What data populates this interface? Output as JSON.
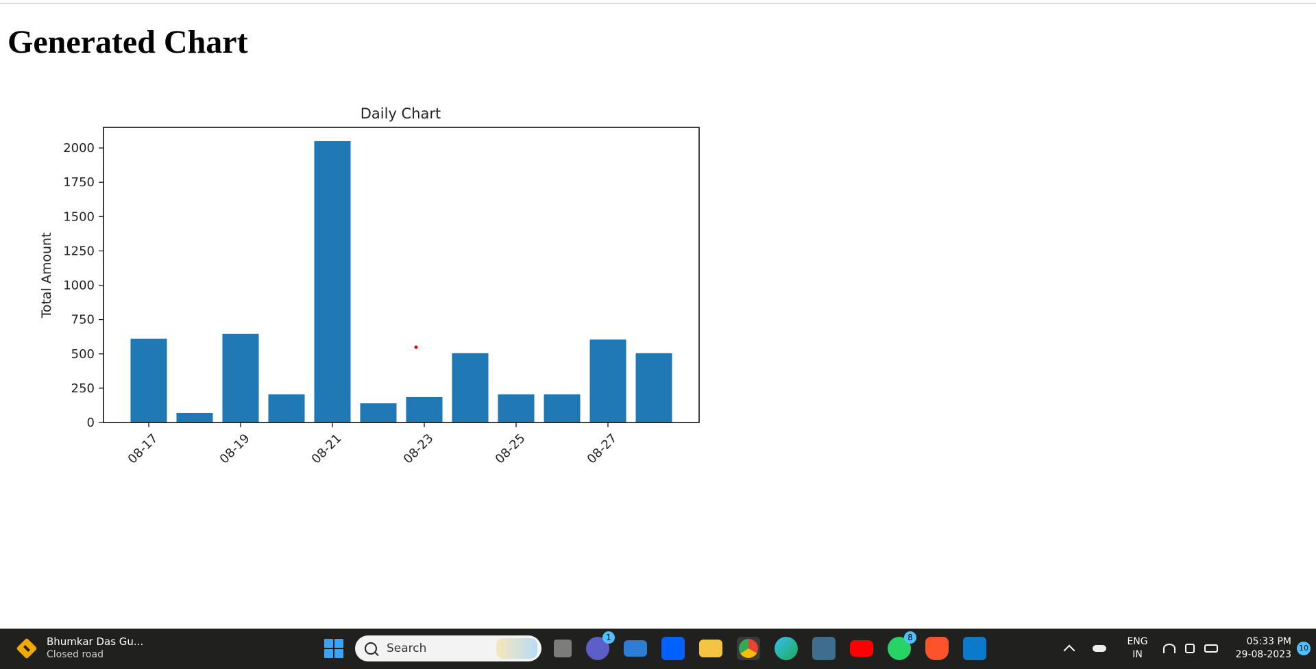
{
  "page": {
    "heading": "Generated Chart"
  },
  "chart_data": {
    "type": "bar",
    "title": "Daily Chart",
    "xlabel": "",
    "ylabel": "Total Amount",
    "color": "#1f77b4",
    "ylim": [
      0,
      2150
    ],
    "yticks": [
      0,
      250,
      500,
      750,
      1000,
      1250,
      1500,
      1750,
      2000
    ],
    "xtick_labels": [
      "08-17",
      "08-19",
      "08-21",
      "08-23",
      "08-25",
      "08-27"
    ],
    "categories": [
      "08-17",
      "08-18",
      "08-19",
      "08-20",
      "08-21",
      "08-22",
      "08-23",
      "08-24",
      "08-25",
      "08-26",
      "08-27",
      "08-28"
    ],
    "values": [
      610,
      70,
      645,
      205,
      2050,
      140,
      185,
      505,
      205,
      205,
      605,
      505
    ],
    "grid": false,
    "legend": "none"
  },
  "taskbar": {
    "widget": {
      "title": "Bhumkar Das Gu...",
      "subtitle": "Closed road",
      "icon": "traffic-diamond-icon"
    },
    "search_placeholder": "Search",
    "apps": [
      {
        "name": "task-view",
        "label": "",
        "badge": ""
      },
      {
        "name": "teams",
        "label": "",
        "badge": "1"
      },
      {
        "name": "mail",
        "label": "",
        "badge": ""
      },
      {
        "name": "dropbox",
        "label": "",
        "badge": ""
      },
      {
        "name": "file-explorer",
        "label": "",
        "badge": ""
      },
      {
        "name": "chrome",
        "label": "",
        "badge": ""
      },
      {
        "name": "edge",
        "label": "",
        "badge": ""
      },
      {
        "name": "mysql",
        "label": "",
        "badge": ""
      },
      {
        "name": "youtube",
        "label": "",
        "badge": ""
      },
      {
        "name": "whatsapp",
        "label": "",
        "badge": "8"
      },
      {
        "name": "brave",
        "label": "",
        "badge": ""
      },
      {
        "name": "vscode",
        "label": "",
        "badge": ""
      }
    ],
    "tray": {
      "lang_top": "ENG",
      "lang_bottom": "IN",
      "time": "05:33 PM",
      "date": "29-08-2023",
      "notifications": "10"
    }
  }
}
